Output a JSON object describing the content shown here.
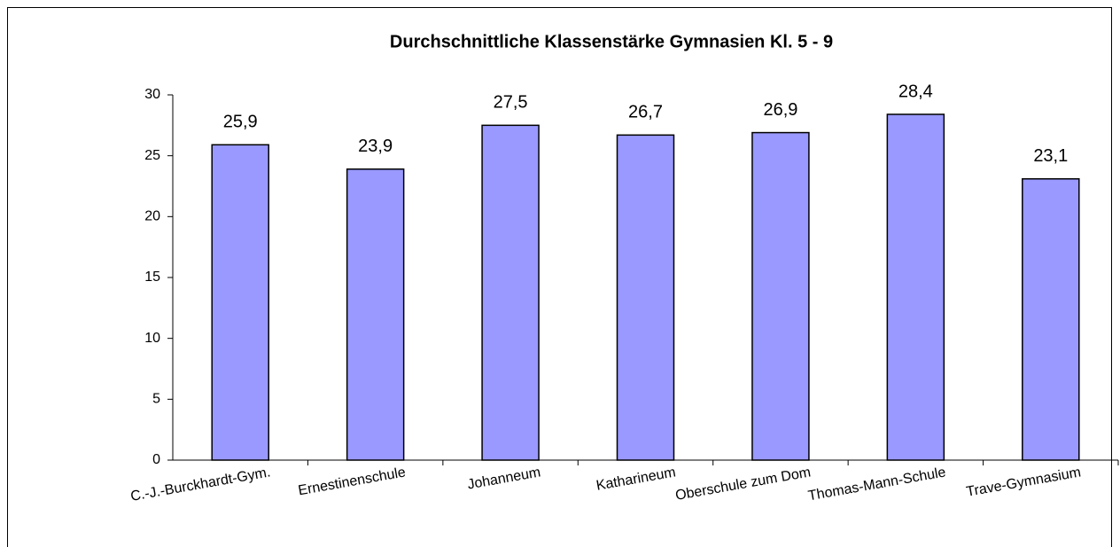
{
  "chart_data": {
    "type": "bar",
    "title": "Durchschnittliche Klassenstärke Gymnasien Kl. 5 - 9",
    "categories": [
      "C.-J.-Burckhardt-Gym.",
      "Ernestinenschule",
      "Johanneum",
      "Katharineum",
      "Oberschule zum Dom",
      "Thomas-Mann-Schule",
      "Trave-Gymnasium"
    ],
    "values": [
      25.9,
      23.9,
      27.5,
      26.7,
      26.9,
      28.4,
      23.1
    ],
    "value_labels": [
      "25,9",
      "23,9",
      "27,5",
      "26,7",
      "26,9",
      "28,4",
      "23,1"
    ],
    "color": "#9999ff",
    "ylim": [
      0,
      30
    ],
    "yticks": [
      0,
      5,
      10,
      15,
      20,
      25,
      30
    ],
    "grid": false
  }
}
